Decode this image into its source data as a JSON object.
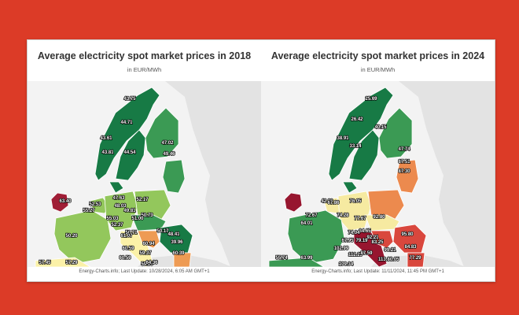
{
  "maps": [
    {
      "title": "Average electricity spot market prices in 2018",
      "subtitle": "in EUR/MWh",
      "footer": "Energy-Charts.info; Last Update: 10/28/2024, 6:05 AM GMT+1",
      "labels": [
        "43.75",
        "44.71",
        "43.61",
        "43.81",
        "44.54",
        "47.02",
        "49.46",
        "63.40",
        "52.53",
        "55.27",
        "50.20",
        "47.63",
        "52.17",
        "48.03",
        "49.81",
        "50.73",
        "51.00",
        "55.03",
        "52.37",
        "50.71",
        "57.45",
        "57.29",
        "61.07",
        "60.59",
        "60.94",
        "59.37",
        "60.59",
        "59.96",
        "50.17",
        "48.41",
        "39.96",
        "64.36",
        "60.39"
      ],
      "colors": {
        "darkgreen": "#177a45",
        "green": "#3b9a54",
        "lightgreen": "#93c75c",
        "yellow": "#fbf1a8",
        "orange": "#ee9b54",
        "red": "#e06c52",
        "darkred": "#a01e36"
      }
    },
    {
      "title": "Average electricity spot market prices in 2024",
      "subtitle": "in EUR/MWh",
      "footer": "Energy-Charts.info; Last Update: 11/11/2024, 11:45 PM GMT+1",
      "labels": [
        "25.69",
        "26.42",
        "38.91",
        "33.14",
        "40.15",
        "47.74",
        "87.51",
        "87.30",
        "42.80",
        "67.86",
        "76.05",
        "72.67",
        "74.28",
        "77.67",
        "64.01",
        "92.80",
        "84.65",
        "74.04",
        "92.21",
        "95.80",
        "67.95",
        "79.19",
        "83.25",
        "102.99",
        "112.25",
        "87.59",
        "113.68",
        "109.34",
        "55.74",
        "63.99",
        "84.83",
        "99.21",
        "77.29",
        "80.05"
      ],
      "colors": {
        "darkgreen": "#177a45",
        "green": "#3b9a54",
        "lightgreen": "#a7cf72",
        "yellow": "#f6eaa1",
        "orange": "#ec8a4e",
        "red": "#d9473d",
        "darkred": "#97162f"
      }
    }
  ]
}
